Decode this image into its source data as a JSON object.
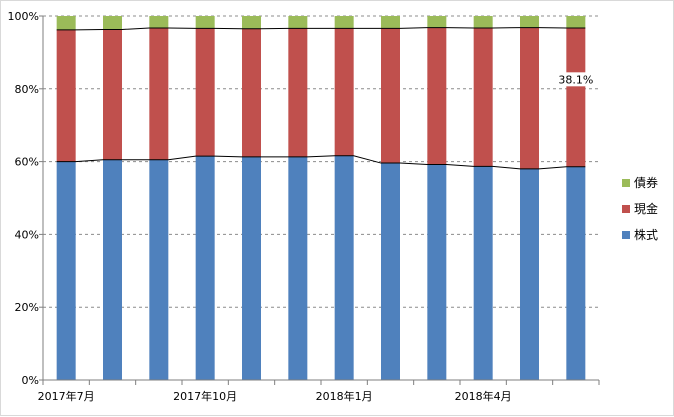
{
  "chart_data": {
    "type": "bar",
    "stacked": true,
    "percent_stacked": true,
    "title": "",
    "xlabel": "",
    "ylabel": "",
    "ylim": [
      0,
      100
    ],
    "yticks": [
      "0%",
      "20%",
      "40%",
      "60%",
      "80%",
      "100%"
    ],
    "categories": [
      "2017年7月",
      "",
      "",
      "2017年10月",
      "",
      "",
      "2018年1月",
      "",
      "",
      "2018年4月",
      "",
      ""
    ],
    "series": [
      {
        "name": "株式",
        "color": "#4f81bd",
        "values": [
          60.0,
          60.5,
          60.5,
          61.5,
          61.3,
          61.3,
          61.6,
          59.6,
          59.2,
          58.7,
          58.0,
          58.6
        ]
      },
      {
        "name": "現金",
        "color": "#c0504d",
        "values": [
          36.2,
          35.8,
          36.2,
          35.1,
          35.2,
          35.3,
          35.0,
          37.0,
          37.6,
          38.0,
          38.8,
          38.1
        ]
      },
      {
        "name": "債券",
        "color": "#9bbb59",
        "values": [
          3.8,
          3.7,
          3.3,
          3.4,
          3.5,
          3.4,
          3.4,
          3.4,
          3.2,
          3.3,
          3.2,
          3.3
        ]
      }
    ],
    "data_labels": [
      {
        "text": "38.1%"
      }
    ],
    "grid": true,
    "series_lines": true,
    "legend_position": "right"
  }
}
